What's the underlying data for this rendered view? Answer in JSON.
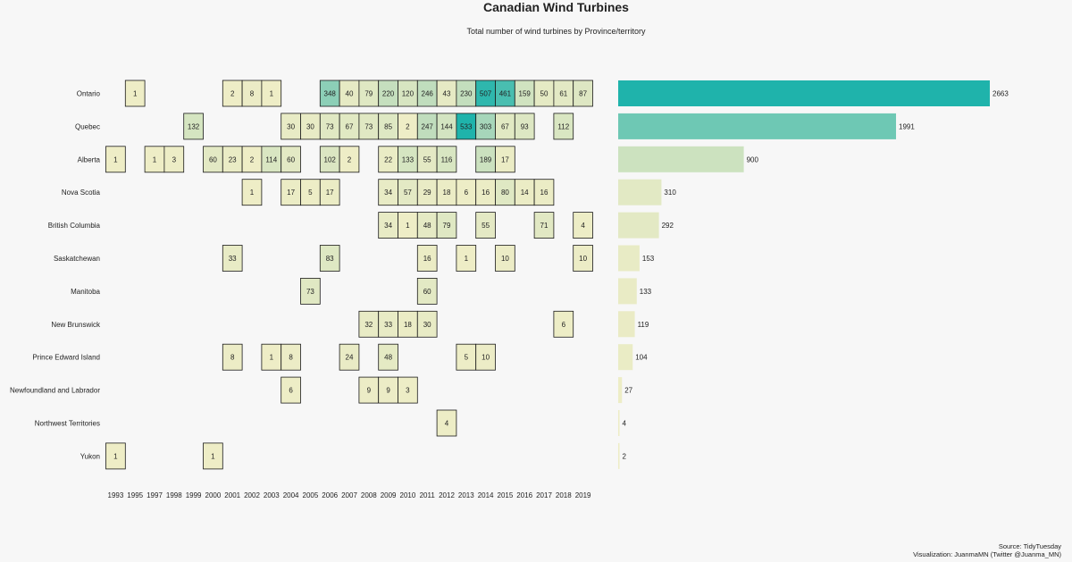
{
  "title": "Canadian Wind Turbines",
  "subtitle": "Total number of wind turbines by Province/territory",
  "caption": {
    "source": "Source: TidyTuesday",
    "credit": "Visualization: JuanmaMN (Twitter @Juanma_MN)"
  },
  "colors": {
    "background": "#f7f7f7",
    "tile_low": "#eeedc6",
    "tile_mid": "#bcdcbc",
    "tile_high": "#1fb3ab",
    "tile_border": "#1a1a1a"
  },
  "chart_data": [
    {
      "type": "heatmap",
      "x_categories": [
        "1993",
        "1995",
        "1997",
        "1998",
        "1999",
        "2000",
        "2001",
        "2002",
        "2003",
        "2004",
        "2005",
        "2006",
        "2007",
        "2008",
        "2009",
        "2010",
        "2011",
        "2012",
        "2013",
        "2014",
        "2015",
        "2016",
        "2017",
        "2018",
        "2019"
      ],
      "y_categories": [
        "Ontario",
        "Quebec",
        "Alberta",
        "Nova Scotia",
        "British Columbia",
        "Saskatchewan",
        "Manitoba",
        "New Brunswick",
        "Prince Edward Island",
        "Newfoundland and Labrador",
        "Northwest Territories",
        "Yukon"
      ],
      "cells": [
        [
          "Ontario",
          "1995",
          1
        ],
        [
          "Ontario",
          "2001",
          2
        ],
        [
          "Ontario",
          "2002",
          8
        ],
        [
          "Ontario",
          "2003",
          1
        ],
        [
          "Ontario",
          "2006",
          348
        ],
        [
          "Ontario",
          "2007",
          40
        ],
        [
          "Ontario",
          "2008",
          79
        ],
        [
          "Ontario",
          "2009",
          220
        ],
        [
          "Ontario",
          "2010",
          120
        ],
        [
          "Ontario",
          "2011",
          246
        ],
        [
          "Ontario",
          "2012",
          43
        ],
        [
          "Ontario",
          "2013",
          230
        ],
        [
          "Ontario",
          "2014",
          507
        ],
        [
          "Ontario",
          "2015",
          461
        ],
        [
          "Ontario",
          "2016",
          159
        ],
        [
          "Ontario",
          "2017",
          50
        ],
        [
          "Ontario",
          "2018",
          61
        ],
        [
          "Ontario",
          "2019",
          87
        ],
        [
          "Quebec",
          "1999",
          132
        ],
        [
          "Quebec",
          "2004",
          30
        ],
        [
          "Quebec",
          "2005",
          30
        ],
        [
          "Quebec",
          "2006",
          73
        ],
        [
          "Quebec",
          "2007",
          67
        ],
        [
          "Quebec",
          "2008",
          73
        ],
        [
          "Quebec",
          "2009",
          85
        ],
        [
          "Quebec",
          "2010",
          2
        ],
        [
          "Quebec",
          "2011",
          247
        ],
        [
          "Quebec",
          "2012",
          144
        ],
        [
          "Quebec",
          "2013",
          533
        ],
        [
          "Quebec",
          "2014",
          303
        ],
        [
          "Quebec",
          "2015",
          67
        ],
        [
          "Quebec",
          "2016",
          93
        ],
        [
          "Quebec",
          "2018",
          112
        ],
        [
          "Alberta",
          "1993",
          1
        ],
        [
          "Alberta",
          "1997",
          1
        ],
        [
          "Alberta",
          "1998",
          3
        ],
        [
          "Alberta",
          "2000",
          60
        ],
        [
          "Alberta",
          "2001",
          23
        ],
        [
          "Alberta",
          "2002",
          2
        ],
        [
          "Alberta",
          "2003",
          114
        ],
        [
          "Alberta",
          "2004",
          60
        ],
        [
          "Alberta",
          "2006",
          102
        ],
        [
          "Alberta",
          "2007",
          2
        ],
        [
          "Alberta",
          "2009",
          22
        ],
        [
          "Alberta",
          "2010",
          133
        ],
        [
          "Alberta",
          "2011",
          55
        ],
        [
          "Alberta",
          "2012",
          116
        ],
        [
          "Alberta",
          "2014",
          189
        ],
        [
          "Alberta",
          "2015",
          17
        ],
        [
          "Nova Scotia",
          "2002",
          1
        ],
        [
          "Nova Scotia",
          "2004",
          17
        ],
        [
          "Nova Scotia",
          "2005",
          5
        ],
        [
          "Nova Scotia",
          "2006",
          17
        ],
        [
          "Nova Scotia",
          "2009",
          34
        ],
        [
          "Nova Scotia",
          "2010",
          57
        ],
        [
          "Nova Scotia",
          "2011",
          29
        ],
        [
          "Nova Scotia",
          "2012",
          18
        ],
        [
          "Nova Scotia",
          "2013",
          6
        ],
        [
          "Nova Scotia",
          "2014",
          16
        ],
        [
          "Nova Scotia",
          "2015",
          80
        ],
        [
          "Nova Scotia",
          "2016",
          14
        ],
        [
          "Nova Scotia",
          "2017",
          16
        ],
        [
          "British Columbia",
          "2009",
          34
        ],
        [
          "British Columbia",
          "2010",
          1
        ],
        [
          "British Columbia",
          "2011",
          48
        ],
        [
          "British Columbia",
          "2012",
          79
        ],
        [
          "British Columbia",
          "2014",
          55
        ],
        [
          "British Columbia",
          "2017",
          71
        ],
        [
          "British Columbia",
          "2019",
          4
        ],
        [
          "Saskatchewan",
          "2001",
          33
        ],
        [
          "Saskatchewan",
          "2006",
          83
        ],
        [
          "Saskatchewan",
          "2011",
          16
        ],
        [
          "Saskatchewan",
          "2013",
          1
        ],
        [
          "Saskatchewan",
          "2015",
          10
        ],
        [
          "Saskatchewan",
          "2019",
          10
        ],
        [
          "Manitoba",
          "2005",
          73
        ],
        [
          "Manitoba",
          "2011",
          60
        ],
        [
          "New Brunswick",
          "2008",
          32
        ],
        [
          "New Brunswick",
          "2009",
          33
        ],
        [
          "New Brunswick",
          "2010",
          18
        ],
        [
          "New Brunswick",
          "2011",
          30
        ],
        [
          "New Brunswick",
          "2018",
          6
        ],
        [
          "Prince Edward Island",
          "2001",
          8
        ],
        [
          "Prince Edward Island",
          "2003",
          1
        ],
        [
          "Prince Edward Island",
          "2004",
          8
        ],
        [
          "Prince Edward Island",
          "2007",
          24
        ],
        [
          "Prince Edward Island",
          "2009",
          48
        ],
        [
          "Prince Edward Island",
          "2013",
          5
        ],
        [
          "Prince Edward Island",
          "2014",
          10
        ],
        [
          "Newfoundland and Labrador",
          "2004",
          6
        ],
        [
          "Newfoundland and Labrador",
          "2008",
          9
        ],
        [
          "Newfoundland and Labrador",
          "2009",
          9
        ],
        [
          "Newfoundland and Labrador",
          "2010",
          3
        ],
        [
          "Northwest Territories",
          "2012",
          4
        ],
        [
          "Yukon",
          "1993",
          1
        ],
        [
          "Yukon",
          "2000",
          1
        ]
      ],
      "color_scale": {
        "min": 0,
        "max": 533
      }
    },
    {
      "type": "bar",
      "orientation": "horizontal",
      "categories": [
        "Ontario",
        "Quebec",
        "Alberta",
        "Nova Scotia",
        "British Columbia",
        "Saskatchewan",
        "Manitoba",
        "New Brunswick",
        "Prince Edward Island",
        "Newfoundland and Labrador",
        "Northwest Territories",
        "Yukon"
      ],
      "values": [
        2663,
        1991,
        900,
        310,
        292,
        153,
        133,
        119,
        104,
        27,
        4,
        2
      ],
      "xlim": [
        0,
        2663
      ]
    }
  ]
}
